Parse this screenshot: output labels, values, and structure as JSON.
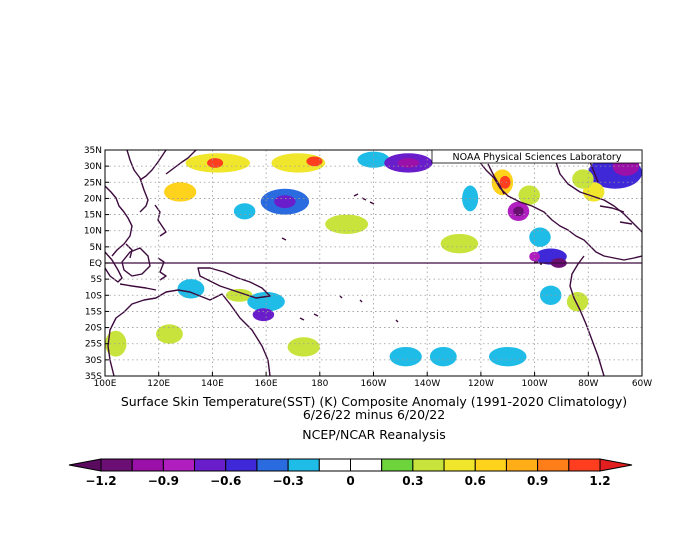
{
  "figure": {
    "credit": "NOAA Physical Sciences Laboratory",
    "title_line1": "Surface Skin Temperature(SST) (K) Composite Anomaly (1991-2020 Climatology)",
    "title_line2": "6/26/22 minus 6/20/22",
    "source": "NCEP/NCAR Reanalysis"
  },
  "map": {
    "lon_range": [
      100,
      300
    ],
    "lat_range": [
      -35,
      35
    ],
    "lon_ticks": [
      {
        "lon": 100,
        "label": "100E"
      },
      {
        "lon": 120,
        "label": "120E"
      },
      {
        "lon": 140,
        "label": "140E"
      },
      {
        "lon": 160,
        "label": "160E"
      },
      {
        "lon": 180,
        "label": "180"
      },
      {
        "lon": 200,
        "label": "160W"
      },
      {
        "lon": 220,
        "label": "140W"
      },
      {
        "lon": 240,
        "label": "120W"
      },
      {
        "lon": 260,
        "label": "100W"
      },
      {
        "lon": 280,
        "label": "80W"
      },
      {
        "lon": 300,
        "label": "60W"
      }
    ],
    "lat_ticks": [
      {
        "lat": 35,
        "label": "35N"
      },
      {
        "lat": 30,
        "label": "30N"
      },
      {
        "lat": 25,
        "label": "25N"
      },
      {
        "lat": 20,
        "label": "20N"
      },
      {
        "lat": 15,
        "label": "15N"
      },
      {
        "lat": 10,
        "label": "10N"
      },
      {
        "lat": 5,
        "label": "5N"
      },
      {
        "lat": 0,
        "label": "EQ"
      },
      {
        "lat": -5,
        "label": "5S"
      },
      {
        "lat": -10,
        "label": "10S"
      },
      {
        "lat": -15,
        "label": "15S"
      },
      {
        "lat": -20,
        "label": "20S"
      },
      {
        "lat": -25,
        "label": "25S"
      },
      {
        "lat": -30,
        "label": "30S"
      },
      {
        "lat": -35,
        "label": "35S"
      }
    ],
    "anomaly_patches": [
      {
        "lon": 142,
        "lat": 31,
        "rx": 12,
        "ry": 3,
        "value": 0.5
      },
      {
        "lon": 141,
        "lat": 31,
        "rx": 3,
        "ry": 1.5,
        "value": 1.1
      },
      {
        "lon": 172,
        "lat": 31,
        "rx": 10,
        "ry": 3,
        "value": 0.5
      },
      {
        "lon": 178,
        "lat": 31.5,
        "rx": 3,
        "ry": 1.5,
        "value": 1.1
      },
      {
        "lon": 128,
        "lat": 22,
        "rx": 6,
        "ry": 3,
        "value": 0.6
      },
      {
        "lon": 200,
        "lat": 32,
        "rx": 6,
        "ry": 2.5,
        "value": -0.3
      },
      {
        "lon": 213,
        "lat": 31,
        "rx": 9,
        "ry": 3,
        "value": -0.7
      },
      {
        "lon": 213,
        "lat": 31,
        "rx": 4,
        "ry": 1.5,
        "value": -0.95
      },
      {
        "lon": 248,
        "lat": 25,
        "rx": 4,
        "ry": 4,
        "value": 0.7
      },
      {
        "lon": 249,
        "lat": 25,
        "rx": 2,
        "ry": 2,
        "value": 1.1
      },
      {
        "lon": 254,
        "lat": 16,
        "rx": 4,
        "ry": 3,
        "value": -0.8
      },
      {
        "lon": 254,
        "lat": 16,
        "rx": 2,
        "ry": 1.5,
        "value": -1.1
      },
      {
        "lon": 262,
        "lat": 8,
        "rx": 4,
        "ry": 3,
        "value": -0.3
      },
      {
        "lon": 266,
        "lat": 2,
        "rx": 6,
        "ry": 2.5,
        "value": -0.6
      },
      {
        "lon": 260,
        "lat": 2,
        "rx": 2,
        "ry": 1.5,
        "value": -0.85
      },
      {
        "lon": 269,
        "lat": 0,
        "rx": 3,
        "ry": 1.5,
        "value": -1.1
      },
      {
        "lon": 290,
        "lat": 28,
        "rx": 10,
        "ry": 5,
        "value": -0.6
      },
      {
        "lon": 294,
        "lat": 30,
        "rx": 5,
        "ry": 3,
        "value": -0.95
      },
      {
        "lon": 282,
        "lat": 22,
        "rx": 4,
        "ry": 3,
        "value": 0.5
      },
      {
        "lon": 167,
        "lat": 19,
        "rx": 9,
        "ry": 4,
        "value": -0.45
      },
      {
        "lon": 167,
        "lat": 19,
        "rx": 4,
        "ry": 2,
        "value": -0.65
      },
      {
        "lon": 152,
        "lat": 16,
        "rx": 4,
        "ry": 2.5,
        "value": -0.3
      },
      {
        "lon": 190,
        "lat": 12,
        "rx": 8,
        "ry": 3,
        "value": 0.3
      },
      {
        "lon": 232,
        "lat": 6,
        "rx": 7,
        "ry": 3,
        "value": 0.3
      },
      {
        "lon": 236,
        "lat": 20,
        "rx": 3,
        "ry": 4,
        "value": -0.3
      },
      {
        "lon": 258,
        "lat": 21,
        "rx": 4,
        "ry": 3,
        "value": 0.3
      },
      {
        "lon": 278,
        "lat": 26,
        "rx": 4,
        "ry": 3,
        "value": 0.3
      },
      {
        "lon": 132,
        "lat": -8,
        "rx": 5,
        "ry": 3,
        "value": -0.3
      },
      {
        "lon": 150,
        "lat": -10,
        "rx": 5,
        "ry": 2,
        "value": 0.3
      },
      {
        "lon": 160,
        "lat": -12,
        "rx": 7,
        "ry": 3,
        "value": -0.3
      },
      {
        "lon": 159,
        "lat": -16,
        "rx": 4,
        "ry": 2,
        "value": -0.65
      },
      {
        "lon": 124,
        "lat": -22,
        "rx": 5,
        "ry": 3,
        "value": 0.3
      },
      {
        "lon": 104,
        "lat": -25,
        "rx": 4,
        "ry": 4,
        "value": 0.3
      },
      {
        "lon": 174,
        "lat": -26,
        "rx": 6,
        "ry": 3,
        "value": 0.3
      },
      {
        "lon": 212,
        "lat": -29,
        "rx": 6,
        "ry": 3,
        "value": -0.3
      },
      {
        "lon": 226,
        "lat": -29,
        "rx": 5,
        "ry": 3,
        "value": -0.3
      },
      {
        "lon": 250,
        "lat": -29,
        "rx": 7,
        "ry": 3,
        "value": -0.3
      },
      {
        "lon": 266,
        "lat": -10,
        "rx": 4,
        "ry": 3,
        "value": -0.3
      },
      {
        "lon": 276,
        "lat": -12,
        "rx": 4,
        "ry": 3,
        "value": 0.3
      }
    ]
  },
  "colorbar": {
    "labels": [
      "-1.2",
      "-0.9",
      "-0.6",
      "-0.3",
      "0",
      "0.3",
      "0.6",
      "0.9",
      "1.2"
    ],
    "colors": [
      "#6b0f75",
      "#9a10a8",
      "#b01ec0",
      "#6a1ecb",
      "#3f28d8",
      "#2b6be0",
      "#1fbce8",
      "#ffffff",
      "#ffffff",
      "#6ed43c",
      "#c8e43c",
      "#f0e62c",
      "#ffd21c",
      "#ffae18",
      "#ff7e1a",
      "#ff3d1f"
    ],
    "end_colors": [
      "#5a0b60",
      "#e21e1e"
    ]
  }
}
